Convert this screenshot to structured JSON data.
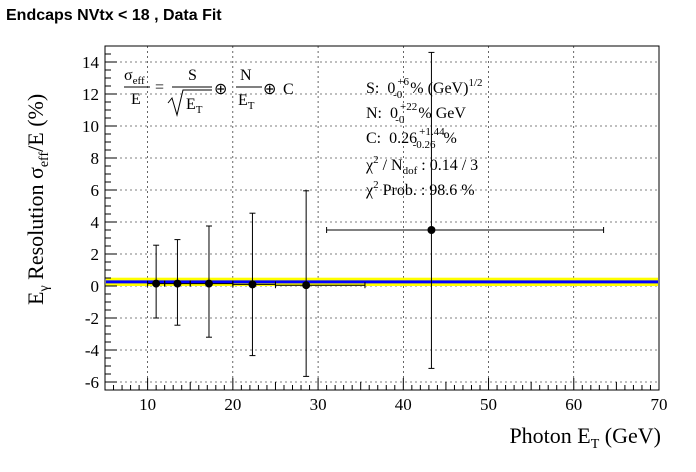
{
  "title": "Endcaps NVtx < 18 , Data Fit",
  "chart_data": {
    "type": "scatter",
    "title": "Endcaps NVtx < 18 , Data Fit",
    "xlabel": {
      "main": "Photon E",
      "sub": "T",
      "unit": " (GeV)"
    },
    "ylabel": {
      "p1": "E",
      "p1sub": "γ",
      "p2": " Resolution σ",
      "p2sub": "eff",
      "p3": "/E (%)"
    },
    "xlim": [
      5,
      70
    ],
    "ylim": [
      -6.5,
      15
    ],
    "xticks": [
      10,
      20,
      30,
      40,
      50,
      60,
      70
    ],
    "yticks": [
      -6,
      -4,
      -2,
      0,
      2,
      4,
      6,
      8,
      10,
      12,
      14
    ],
    "grid": true,
    "points": [
      {
        "x": 11.0,
        "y": 0.15,
        "ylow": -2.0,
        "yhigh": 2.55,
        "xlow": 10.0,
        "xhigh": 12.0
      },
      {
        "x": 13.5,
        "y": 0.15,
        "ylow": -2.45,
        "yhigh": 2.9,
        "xlow": 12.0,
        "xhigh": 15.0
      },
      {
        "x": 17.2,
        "y": 0.15,
        "ylow": -3.2,
        "yhigh": 3.75,
        "xlow": 15.0,
        "xhigh": 20.0
      },
      {
        "x": 22.3,
        "y": 0.1,
        "ylow": -4.35,
        "yhigh": 4.55,
        "xlow": 20.0,
        "xhigh": 25.0
      },
      {
        "x": 28.6,
        "y": 0.05,
        "ylow": -5.65,
        "yhigh": 5.95,
        "xlow": 25.0,
        "xhigh": 35.5
      },
      {
        "x": 43.3,
        "y": 3.5,
        "ylow": -5.15,
        "yhigh": 14.6,
        "xlow": 31.0,
        "xhigh": 63.5
      }
    ],
    "fit": {
      "band_low": 0.0,
      "band_high": 0.52,
      "value": 0.26,
      "band_color": "#ffff00",
      "line_color": "#0000ff",
      "color_note": "yellow uncertainty band with blue central fit line"
    }
  },
  "formula": {
    "lhs_num": "σ",
    "lhs_num_sub": "eff",
    "lhs_den": "E",
    "eq": "=",
    "s": "S",
    "sqrt_e": "E",
    "sqrt_sub": "T",
    "oplus": "⊕",
    "n": "N",
    "n_den": "E",
    "n_den_sub": "T",
    "c": "C"
  },
  "fit_results": {
    "s_label": "S:",
    "s_value": "0",
    "s_up": "+6",
    "s_down": "-0",
    "s_unit": " % (GeV)",
    "s_unit_sup": "1/2",
    "n_label": "N:",
    "n_value": "0",
    "n_up": "+22",
    "n_down": "-0",
    "n_unit": " % GeV",
    "c_label": "C:",
    "c_value": "0.26",
    "c_up": "+1.44",
    "c_down": "-0.26",
    "c_unit": " %",
    "chi2_label": "χ",
    "chi2_sup": "2",
    "chi2_mid": " / N",
    "chi2_sub": "dof",
    "chi2_value": " : 0.14 / 3",
    "prob_label": "χ",
    "prob_sup": "2",
    "prob_text": " Prob. : 98.6 %"
  }
}
